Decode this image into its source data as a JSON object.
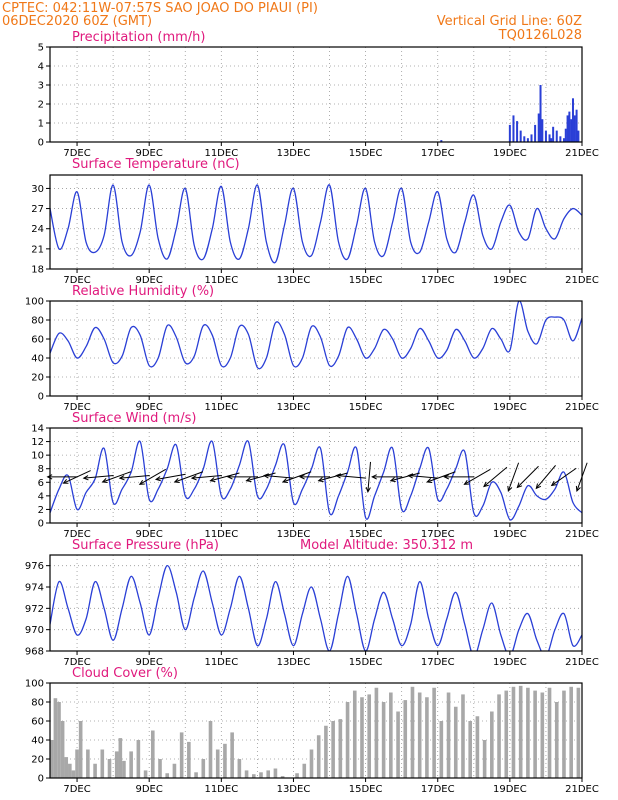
{
  "header": {
    "left_line1": "CPTEC:   042:11W-07:57S   SAO JOAO DO PIAUI (PI)",
    "left_line2": "06DEC2020 60Z (GMT)",
    "right_line1": "Vertical Grid Line: 60Z",
    "right_line2": "TQ0126L028"
  },
  "colors": {
    "header": "#f07818",
    "title": "#e0197d",
    "line": "#2a3fd6",
    "cloud": "#a8a8a8",
    "grid": "#999999"
  },
  "chart_data": [
    {
      "type": "bar",
      "title": "Precipitation (mm/h)",
      "x_day_start": 6.25,
      "x_day_end": 21,
      "xtick_labels": [
        "7DEC",
        "9DEC",
        "11DEC",
        "13DEC",
        "15DEC",
        "17DEC",
        "19DEC",
        "21DEC"
      ],
      "xtick_days": [
        7,
        9,
        11,
        13,
        15,
        17,
        19,
        21
      ],
      "ylim": [
        0,
        5
      ],
      "yticks": [
        0,
        1,
        2,
        3,
        4,
        5
      ],
      "x": [
        17.1,
        19.0,
        19.1,
        19.2,
        19.3,
        19.4,
        19.5,
        19.6,
        19.7,
        19.8,
        19.85,
        19.9,
        20.0,
        20.1,
        20.15,
        20.2,
        20.3,
        20.4,
        20.5,
        20.55,
        20.6,
        20.65,
        20.7,
        20.75,
        20.8,
        20.85,
        20.9
      ],
      "values": [
        0.1,
        0.9,
        1.4,
        1.1,
        0.6,
        0.3,
        0.2,
        0.4,
        0.9,
        1.5,
        3.0,
        1.2,
        0.6,
        0.4,
        0.2,
        0.8,
        0.6,
        0.3,
        0.2,
        0.7,
        1.4,
        1.6,
        1.2,
        2.3,
        1.4,
        1.7,
        0.6
      ]
    },
    {
      "type": "line",
      "title": "Surface Temperature (nC)",
      "x_day_start": 6.25,
      "x_day_end": 21,
      "xtick_labels": [
        "7DEC",
        "9DEC",
        "11DEC",
        "13DEC",
        "15DEC",
        "17DEC",
        "19DEC",
        "21DEC"
      ],
      "xtick_days": [
        7,
        9,
        11,
        13,
        15,
        17,
        19,
        21
      ],
      "ylim": [
        18,
        32
      ],
      "yticks": [
        18,
        21,
        24,
        27,
        30
      ],
      "ytick_labels": [
        "18",
        "21",
        "24",
        "27",
        "30"
      ],
      "x": [
        6.25,
        6.5,
        6.75,
        7.0,
        7.25,
        7.5,
        7.75,
        8.0,
        8.25,
        8.5,
        8.75,
        9.0,
        9.25,
        9.5,
        9.75,
        10.0,
        10.25,
        10.5,
        10.75,
        11.0,
        11.25,
        11.5,
        11.75,
        12.0,
        12.25,
        12.5,
        12.75,
        13.0,
        13.25,
        13.5,
        13.75,
        14.0,
        14.25,
        14.5,
        14.75,
        15.0,
        15.25,
        15.5,
        15.75,
        16.0,
        16.25,
        16.5,
        16.75,
        17.0,
        17.25,
        17.5,
        17.75,
        18.0,
        18.25,
        18.5,
        18.75,
        19.0,
        19.25,
        19.5,
        19.75,
        20.0,
        20.25,
        20.5,
        20.75,
        21.0
      ],
      "values": [
        27.0,
        21.0,
        24.0,
        29.5,
        22.0,
        20.5,
        23.0,
        30.5,
        22.0,
        20.0,
        23.5,
        30.5,
        22.5,
        19.5,
        24.0,
        30.0,
        21.5,
        19.5,
        24.0,
        30.3,
        22.0,
        19.5,
        24.0,
        30.5,
        22.0,
        19.0,
        24.5,
        30.0,
        22.0,
        20.0,
        25.0,
        30.5,
        22.0,
        19.5,
        24.5,
        30.0,
        22.0,
        20.0,
        25.0,
        30.0,
        22.0,
        20.5,
        25.0,
        29.5,
        22.5,
        20.5,
        25.0,
        29.0,
        23.0,
        21.0,
        25.0,
        27.5,
        23.5,
        22.5,
        27.0,
        24.0,
        22.5,
        25.5,
        27.0,
        26.0
      ]
    },
    {
      "type": "line",
      "title": "Relative Humidity (%)",
      "x_day_start": 6.25,
      "x_day_end": 21,
      "xtick_labels": [
        "7DEC",
        "9DEC",
        "11DEC",
        "13DEC",
        "15DEC",
        "17DEC",
        "19DEC",
        "21DEC"
      ],
      "xtick_days": [
        7,
        9,
        11,
        13,
        15,
        17,
        19,
        21
      ],
      "ylim": [
        0,
        100
      ],
      "yticks": [
        0,
        20,
        40,
        60,
        80,
        100
      ],
      "ytick_labels": [
        "0",
        "20",
        "40",
        "60",
        "80",
        "100"
      ],
      "x": [
        6.25,
        6.5,
        6.75,
        7.0,
        7.25,
        7.5,
        7.75,
        8.0,
        8.25,
        8.5,
        8.75,
        9.0,
        9.25,
        9.5,
        9.75,
        10.0,
        10.25,
        10.5,
        10.75,
        11.0,
        11.25,
        11.5,
        11.75,
        12.0,
        12.25,
        12.5,
        12.75,
        13.0,
        13.25,
        13.5,
        13.75,
        14.0,
        14.25,
        14.5,
        14.75,
        15.0,
        15.25,
        15.5,
        15.75,
        16.0,
        16.25,
        16.5,
        16.75,
        17.0,
        17.25,
        17.5,
        17.75,
        18.0,
        18.25,
        18.5,
        18.75,
        19.0,
        19.25,
        19.5,
        19.75,
        20.0,
        20.25,
        20.5,
        20.75,
        21.0
      ],
      "values": [
        45.0,
        66.0,
        58.0,
        40.0,
        52.0,
        72.0,
        60.0,
        35.0,
        42.0,
        72.0,
        64.0,
        32.0,
        40.0,
        74.0,
        62.0,
        35.0,
        42.0,
        74.0,
        64.0,
        32.0,
        40.0,
        73.0,
        65.0,
        30.0,
        40.0,
        77.0,
        65.0,
        32.0,
        40.0,
        73.0,
        62.0,
        32.0,
        42.0,
        72.0,
        60.0,
        40.0,
        50.0,
        70.0,
        60.0,
        40.0,
        50.0,
        71.0,
        58.0,
        40.0,
        48.0,
        70.0,
        58.0,
        40.0,
        50.0,
        71.0,
        60.0,
        48.0,
        100.0,
        68.0,
        55.0,
        80.0,
        83.0,
        80.0,
        58.0,
        82.0
      ]
    },
    {
      "type": "line",
      "title": "Surface Wind (m/s)",
      "x_day_start": 6.25,
      "x_day_end": 21,
      "xtick_labels": [
        "7DEC",
        "9DEC",
        "11DEC",
        "13DEC",
        "15DEC",
        "17DEC",
        "19DEC",
        "21DEC"
      ],
      "xtick_days": [
        7,
        9,
        11,
        13,
        15,
        17,
        19,
        21
      ],
      "ylim": [
        0,
        14
      ],
      "yticks": [
        0,
        2,
        4,
        6,
        8,
        10,
        12,
        14
      ],
      "ytick_labels": [
        "0",
        "2",
        "4",
        "6",
        "8",
        "10",
        "12",
        "14"
      ],
      "x": [
        6.25,
        6.5,
        6.75,
        7.0,
        7.25,
        7.5,
        7.75,
        8.0,
        8.25,
        8.5,
        8.75,
        9.0,
        9.25,
        9.5,
        9.75,
        10.0,
        10.25,
        10.5,
        10.75,
        11.0,
        11.25,
        11.5,
        11.75,
        12.0,
        12.25,
        12.5,
        12.75,
        13.0,
        13.25,
        13.5,
        13.75,
        14.0,
        14.25,
        14.5,
        14.75,
        15.0,
        15.25,
        15.5,
        15.75,
        16.0,
        16.25,
        16.5,
        16.75,
        17.0,
        17.25,
        17.5,
        17.75,
        18.0,
        18.25,
        18.5,
        18.75,
        19.0,
        19.25,
        19.5,
        19.75,
        20.0,
        20.25,
        20.5,
        20.75,
        21.0
      ],
      "values": [
        1.5,
        5.0,
        7.0,
        2.0,
        4.5,
        6.5,
        11.0,
        3.0,
        5.0,
        7.5,
        12.0,
        3.5,
        5.0,
        8.0,
        11.5,
        4.0,
        5.0,
        8.0,
        12.0,
        4.0,
        5.0,
        8.5,
        12.0,
        4.0,
        5.0,
        8.5,
        11.5,
        3.0,
        5.0,
        8.0,
        11.0,
        1.5,
        4.0,
        7.5,
        11.0,
        0.8,
        4.0,
        7.5,
        11.0,
        2.0,
        4.0,
        8.0,
        11.0,
        3.5,
        5.0,
        8.0,
        10.5,
        1.5,
        2.5,
        6.0,
        4.5,
        0.5,
        2.5,
        5.5,
        4.0,
        3.5,
        5.0,
        7.5,
        3.0,
        1.5
      ],
      "arrows": [
        {
          "day": 6.6,
          "dir_deg": 180
        },
        {
          "day": 7.0,
          "dir_deg": 205
        },
        {
          "day": 7.6,
          "dir_deg": 185
        },
        {
          "day": 8.1,
          "dir_deg": 200
        },
        {
          "day": 8.6,
          "dir_deg": 185
        },
        {
          "day": 9.1,
          "dir_deg": 210
        },
        {
          "day": 9.6,
          "dir_deg": 190
        },
        {
          "day": 10.1,
          "dir_deg": 200
        },
        {
          "day": 10.6,
          "dir_deg": 185
        },
        {
          "day": 11.1,
          "dir_deg": 195
        },
        {
          "day": 11.6,
          "dir_deg": 180
        },
        {
          "day": 12.1,
          "dir_deg": 195
        },
        {
          "day": 12.6,
          "dir_deg": 175
        },
        {
          "day": 13.1,
          "dir_deg": 200
        },
        {
          "day": 13.6,
          "dir_deg": 180
        },
        {
          "day": 14.1,
          "dir_deg": 195
        },
        {
          "day": 14.6,
          "dir_deg": 175
        },
        {
          "day": 15.1,
          "dir_deg": 265
        },
        {
          "day": 15.6,
          "dir_deg": 180
        },
        {
          "day": 16.1,
          "dir_deg": 195
        },
        {
          "day": 16.6,
          "dir_deg": 175
        },
        {
          "day": 17.1,
          "dir_deg": 200
        },
        {
          "day": 17.6,
          "dir_deg": 180
        },
        {
          "day": 18.1,
          "dir_deg": 210
        },
        {
          "day": 18.6,
          "dir_deg": 220
        },
        {
          "day": 19.1,
          "dir_deg": 250
        },
        {
          "day": 19.5,
          "dir_deg": 225
        },
        {
          "day": 20.0,
          "dir_deg": 230
        },
        {
          "day": 20.5,
          "dir_deg": 215
        },
        {
          "day": 21.0,
          "dir_deg": 250
        }
      ]
    },
    {
      "type": "line",
      "title": "Surface Pressure (hPa)",
      "annotation": "Model Altitude: 350.312 m",
      "x_day_start": 6.25,
      "x_day_end": 21,
      "xtick_labels": [
        "7DEC",
        "9DEC",
        "11DEC",
        "13DEC",
        "15DEC",
        "17DEC",
        "19DEC",
        "21DEC"
      ],
      "xtick_days": [
        7,
        9,
        11,
        13,
        15,
        17,
        19,
        21
      ],
      "ylim": [
        968,
        977
      ],
      "yticks": [
        968,
        970,
        972,
        974,
        976
      ],
      "ytick_labels": [
        "968",
        "970",
        "972",
        "974",
        "976"
      ],
      "x": [
        6.25,
        6.5,
        6.75,
        7.0,
        7.25,
        7.5,
        7.75,
        8.0,
        8.25,
        8.5,
        8.75,
        9.0,
        9.25,
        9.5,
        9.75,
        10.0,
        10.25,
        10.5,
        10.75,
        11.0,
        11.25,
        11.5,
        11.75,
        12.0,
        12.25,
        12.5,
        12.75,
        13.0,
        13.25,
        13.5,
        13.75,
        14.0,
        14.25,
        14.5,
        14.75,
        15.0,
        15.25,
        15.5,
        15.75,
        16.0,
        16.25,
        16.5,
        16.75,
        17.0,
        17.25,
        17.5,
        17.75,
        18.0,
        18.25,
        18.5,
        18.75,
        19.0,
        19.25,
        19.5,
        19.75,
        20.0,
        20.25,
        20.5,
        20.75,
        21.0
      ],
      "values": [
        970.5,
        974.5,
        972.0,
        969.5,
        971.0,
        974.5,
        972.0,
        969.0,
        972.0,
        975.0,
        972.5,
        969.5,
        973.0,
        976.0,
        973.5,
        970.0,
        973.0,
        975.5,
        972.5,
        969.5,
        972.0,
        975.0,
        972.0,
        968.5,
        971.0,
        974.5,
        971.5,
        968.5,
        971.5,
        974.0,
        971.0,
        968.0,
        971.5,
        975.0,
        971.5,
        968.0,
        971.0,
        973.5,
        971.0,
        968.5,
        970.5,
        974.5,
        971.0,
        968.5,
        971.0,
        973.5,
        970.5,
        967.5,
        970.0,
        972.5,
        969.5,
        967.5,
        970.0,
        971.5,
        969.0,
        967.5,
        970.0,
        971.5,
        968.5,
        969.5
      ]
    },
    {
      "type": "bar",
      "title": "Cloud Cover (%)",
      "x_day_start": 6.25,
      "x_day_end": 21,
      "xtick_labels": [
        "7DEC",
        "9DEC",
        "11DEC",
        "13DEC",
        "15DEC",
        "17DEC",
        "19DEC",
        "21DEC"
      ],
      "xtick_days": [
        7,
        9,
        11,
        13,
        15,
        17,
        19,
        21
      ],
      "ylim": [
        0,
        100
      ],
      "yticks": [
        0,
        20,
        40,
        60,
        80,
        100
      ],
      "ytick_labels": [
        "0",
        "20",
        "40",
        "60",
        "80",
        "100"
      ],
      "x": [
        6.3,
        6.4,
        6.5,
        6.6,
        6.7,
        6.8,
        6.9,
        7.0,
        7.1,
        7.3,
        7.5,
        7.7,
        7.9,
        8.1,
        8.2,
        8.3,
        8.5,
        8.7,
        8.9,
        9.1,
        9.3,
        9.5,
        9.7,
        9.9,
        10.1,
        10.3,
        10.5,
        10.7,
        10.9,
        11.1,
        11.3,
        11.5,
        11.7,
        11.9,
        12.1,
        12.3,
        12.5,
        12.7,
        12.9,
        13.1,
        13.3,
        13.5,
        13.7,
        13.9,
        14.1,
        14.3,
        14.5,
        14.7,
        14.9,
        15.1,
        15.3,
        15.5,
        15.7,
        15.9,
        16.1,
        16.3,
        16.5,
        16.7,
        16.9,
        17.1,
        17.3,
        17.5,
        17.7,
        17.9,
        18.1,
        18.3,
        18.5,
        18.7,
        18.9,
        19.1,
        19.3,
        19.5,
        19.7,
        19.9,
        20.1,
        20.3,
        20.5,
        20.7,
        20.9
      ],
      "values": [
        40,
        84,
        80,
        60,
        22,
        15,
        8,
        30,
        60,
        30,
        15,
        30,
        20,
        28,
        42,
        18,
        28,
        40,
        8,
        50,
        20,
        5,
        15,
        48,
        38,
        6,
        20,
        60,
        30,
        36,
        48,
        20,
        8,
        4,
        6,
        8,
        10,
        2,
        0,
        5,
        15,
        30,
        45,
        55,
        60,
        62,
        80,
        92,
        85,
        88,
        95,
        80,
        90,
        70,
        82,
        96,
        90,
        85,
        95,
        60,
        90,
        75,
        88,
        60,
        65,
        40,
        70,
        88,
        92,
        96,
        97,
        95,
        92,
        90,
        95,
        80,
        92,
        96,
        95
      ]
    }
  ]
}
